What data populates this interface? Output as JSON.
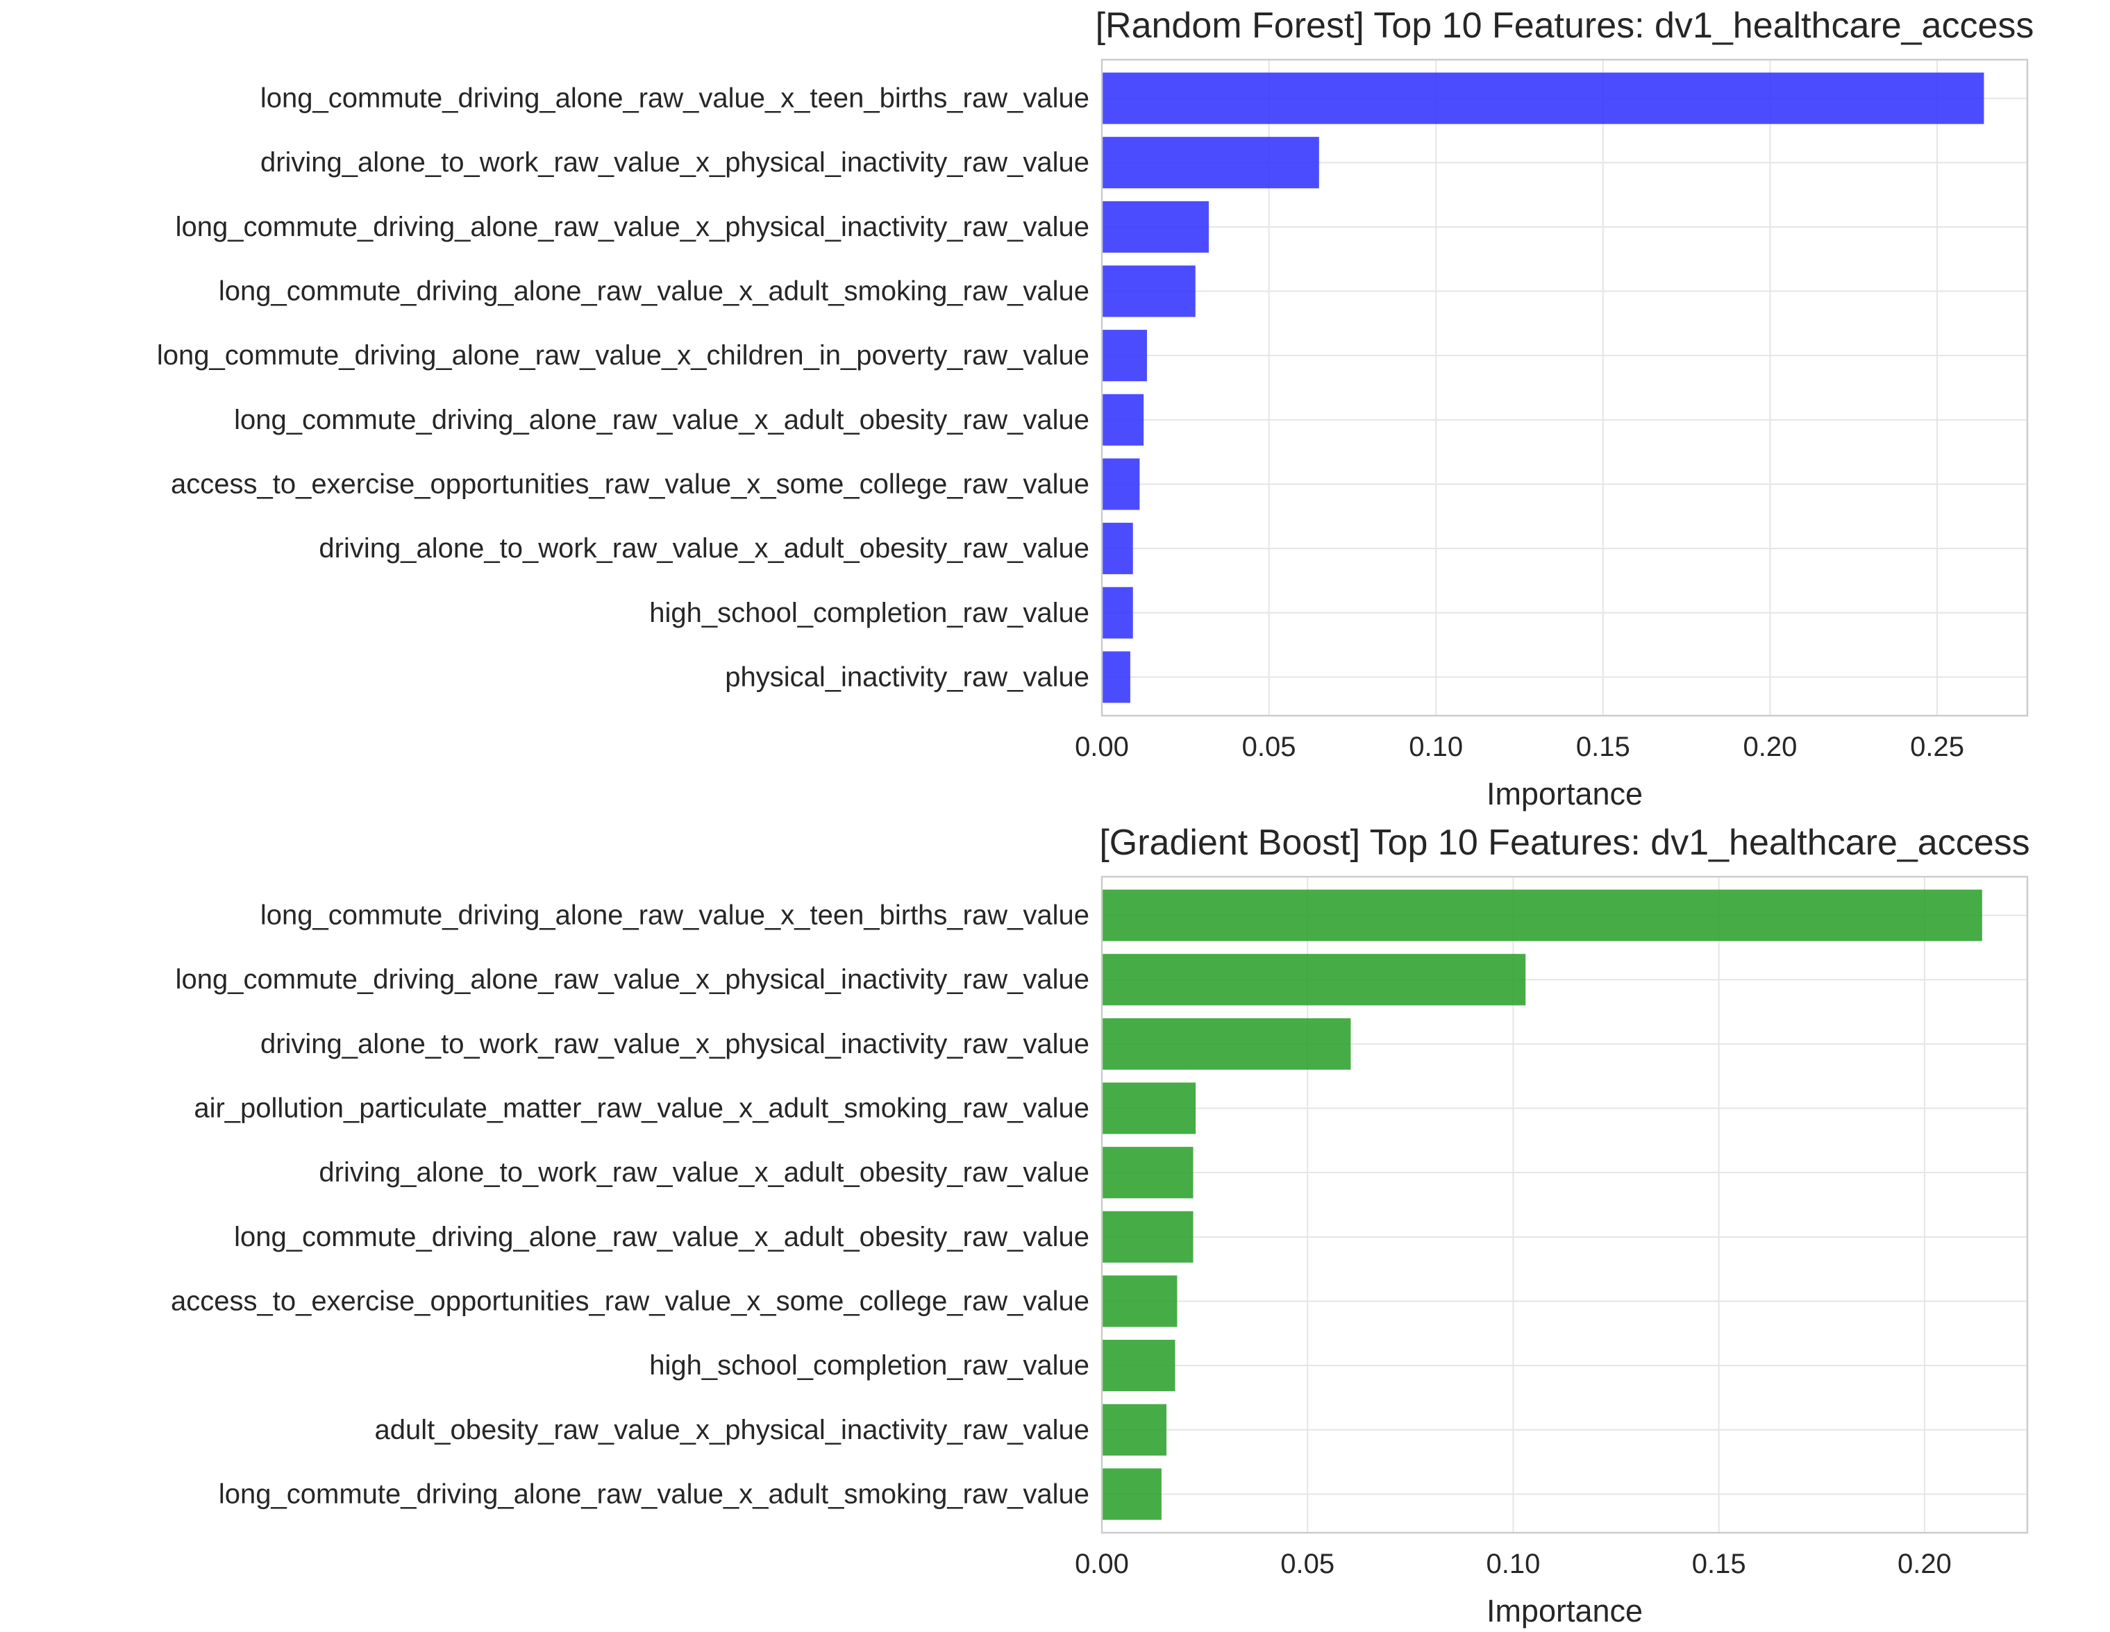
{
  "chart_data": [
    {
      "type": "bar",
      "orientation": "horizontal",
      "title": "[Random Forest] Top 10 Features: dv1_healthcare_access",
      "xlabel": "Importance",
      "ylabel": "",
      "color": "#3333ff",
      "xlim": [
        0,
        0.277
      ],
      "xticks": [
        "0.00",
        "0.05",
        "0.10",
        "0.15",
        "0.20",
        "0.25"
      ],
      "grid": true,
      "categories": [
        "long_commute_driving_alone_raw_value_x_teen_births_raw_value",
        "driving_alone_to_work_raw_value_x_physical_inactivity_raw_value",
        "long_commute_driving_alone_raw_value_x_physical_inactivity_raw_value",
        "long_commute_driving_alone_raw_value_x_adult_smoking_raw_value",
        "long_commute_driving_alone_raw_value_x_children_in_poverty_raw_value",
        "long_commute_driving_alone_raw_value_x_adult_obesity_raw_value",
        "access_to_exercise_opportunities_raw_value_x_some_college_raw_value",
        "driving_alone_to_work_raw_value_x_adult_obesity_raw_value",
        "high_school_completion_raw_value",
        "physical_inactivity_raw_value"
      ],
      "values": [
        0.264,
        0.065,
        0.032,
        0.028,
        0.0135,
        0.0125,
        0.0113,
        0.0093,
        0.0093,
        0.0085
      ]
    },
    {
      "type": "bar",
      "orientation": "horizontal",
      "title": "[Gradient Boost] Top 10 Features: dv1_healthcare_access",
      "xlabel": "Importance",
      "ylabel": "",
      "color": "#2ca02c",
      "xlim": [
        0,
        0.225
      ],
      "xticks": [
        "0.00",
        "0.05",
        "0.10",
        "0.15",
        "0.20"
      ],
      "grid": true,
      "categories": [
        "long_commute_driving_alone_raw_value_x_teen_births_raw_value",
        "long_commute_driving_alone_raw_value_x_physical_inactivity_raw_value",
        "driving_alone_to_work_raw_value_x_physical_inactivity_raw_value",
        "air_pollution_particulate_matter_raw_value_x_adult_smoking_raw_value",
        "driving_alone_to_work_raw_value_x_adult_obesity_raw_value",
        "long_commute_driving_alone_raw_value_x_adult_obesity_raw_value",
        "access_to_exercise_opportunities_raw_value_x_some_college_raw_value",
        "high_school_completion_raw_value",
        "adult_obesity_raw_value_x_physical_inactivity_raw_value",
        "long_commute_driving_alone_raw_value_x_adult_smoking_raw_value"
      ],
      "values": [
        0.214,
        0.103,
        0.0605,
        0.0228,
        0.0222,
        0.0222,
        0.0183,
        0.0178,
        0.0157,
        0.0145
      ]
    }
  ]
}
